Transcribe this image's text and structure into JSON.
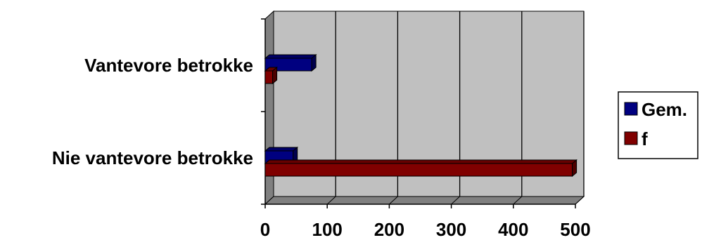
{
  "chart_data": {
    "type": "bar",
    "orientation": "horizontal",
    "three_d": true,
    "categories": [
      "Vantevore betrokke",
      "Nie vantevore betrokke"
    ],
    "series": [
      {
        "name": "Gem.",
        "color": "#000080",
        "values": [
          75,
          45
        ]
      },
      {
        "name": "f",
        "color": "#800000",
        "values": [
          12,
          495
        ]
      }
    ],
    "x_ticks": [
      "0",
      "100",
      "200",
      "300",
      "400",
      "500"
    ],
    "xlim": [
      0,
      500
    ],
    "gridlines": "vertical",
    "legend": "right",
    "plot_background": "#c0c0c0"
  }
}
